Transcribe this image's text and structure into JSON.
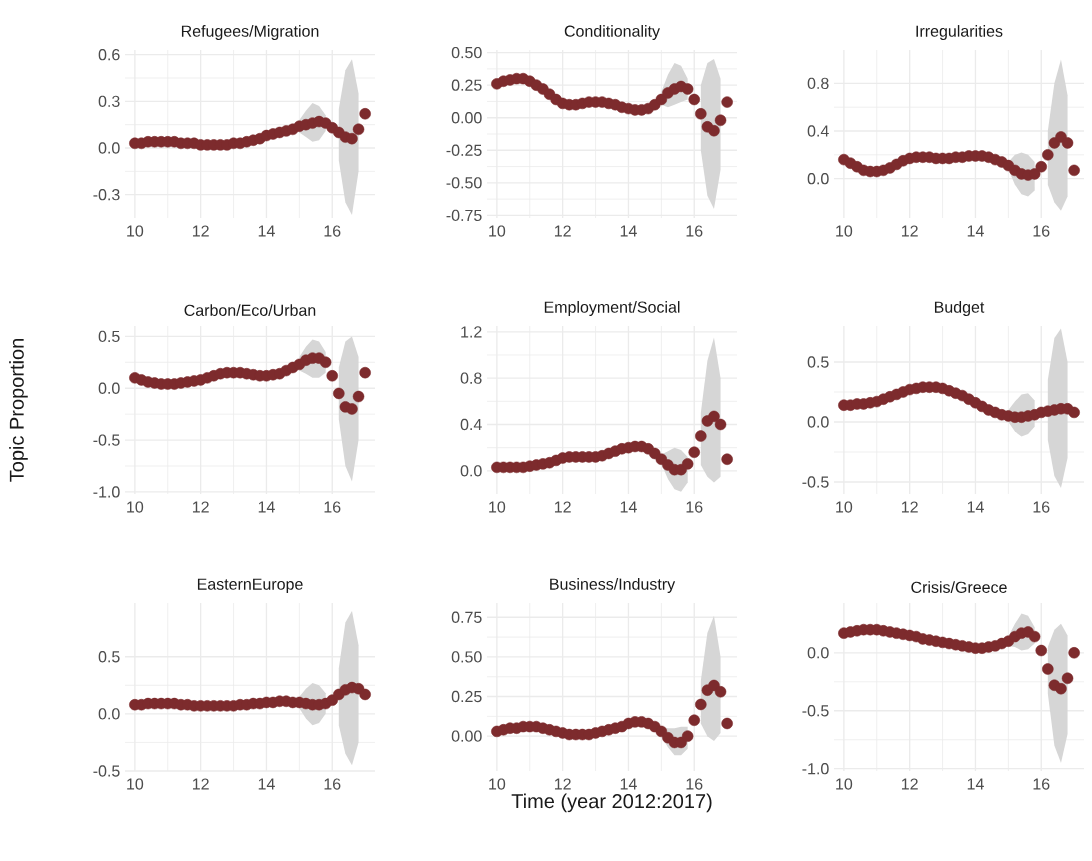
{
  "chart_data": [
    {
      "type": "scatter",
      "title": "Refugees/Migration",
      "grid": true,
      "marker": "circle",
      "xlim": [
        9.7,
        17.3
      ],
      "ylim": [
        -0.45,
        0.63
      ],
      "xticks": [
        10,
        12,
        14,
        16
      ],
      "yticks": [
        {
          "value": -0.3,
          "label": "-0.3"
        },
        {
          "value": 0,
          "label": "0.0"
        },
        {
          "value": 0.3,
          "label": "0.3"
        },
        {
          "value": 0.6,
          "label": "0.6"
        }
      ],
      "x": [
        10.0,
        10.2,
        10.4,
        10.6,
        10.8,
        11.0,
        11.2,
        11.4,
        11.6,
        11.8,
        12.0,
        12.2,
        12.4,
        12.6,
        12.8,
        13.0,
        13.2,
        13.4,
        13.6,
        13.8,
        14.0,
        14.2,
        14.4,
        14.6,
        14.8,
        15.0,
        15.2,
        15.4,
        15.6,
        15.8,
        16.0,
        16.2,
        16.4,
        16.6,
        16.8,
        17.0
      ],
      "series": [
        {
          "color": "#7d2b2d",
          "values": [
            0.03,
            0.03,
            0.04,
            0.04,
            0.04,
            0.04,
            0.04,
            0.03,
            0.03,
            0.03,
            0.02,
            0.02,
            0.02,
            0.02,
            0.02,
            0.03,
            0.03,
            0.04,
            0.05,
            0.06,
            0.08,
            0.09,
            0.1,
            0.11,
            0.12,
            0.14,
            0.15,
            0.16,
            0.17,
            0.16,
            0.13,
            0.1,
            0.07,
            0.06,
            0.12,
            0.22
          ],
          "upper": [
            null,
            null,
            null,
            null,
            null,
            null,
            null,
            null,
            null,
            null,
            null,
            null,
            null,
            null,
            null,
            null,
            null,
            null,
            null,
            null,
            null,
            null,
            null,
            null,
            null,
            0.18,
            0.24,
            0.29,
            0.27,
            0.21,
            null,
            0.25,
            0.5,
            0.57,
            0.35,
            null
          ],
          "lower": [
            null,
            null,
            null,
            null,
            null,
            null,
            null,
            null,
            null,
            null,
            null,
            null,
            null,
            null,
            null,
            null,
            null,
            null,
            null,
            null,
            null,
            null,
            null,
            null,
            null,
            0.1,
            0.07,
            0.04,
            0.05,
            0.11,
            null,
            -0.08,
            -0.35,
            -0.43,
            -0.15,
            null
          ]
        }
      ]
    },
    {
      "type": "scatter",
      "title": "Conditionality",
      "grid": true,
      "marker": "circle",
      "xlim": [
        9.7,
        17.3
      ],
      "ylim": [
        -0.77,
        0.52
      ],
      "xticks": [
        10,
        12,
        14,
        16
      ],
      "yticks": [
        {
          "value": -0.75,
          "label": "-0.75"
        },
        {
          "value": -0.5,
          "label": "-0.50"
        },
        {
          "value": -0.25,
          "label": "-0.25"
        },
        {
          "value": 0,
          "label": "0.00"
        },
        {
          "value": 0.25,
          "label": "0.25"
        },
        {
          "value": 0.5,
          "label": "0.50"
        }
      ],
      "x": [
        10.0,
        10.2,
        10.4,
        10.6,
        10.8,
        11.0,
        11.2,
        11.4,
        11.6,
        11.8,
        12.0,
        12.2,
        12.4,
        12.6,
        12.8,
        13.0,
        13.2,
        13.4,
        13.6,
        13.8,
        14.0,
        14.2,
        14.4,
        14.6,
        14.8,
        15.0,
        15.2,
        15.4,
        15.6,
        15.8,
        16.0,
        16.2,
        16.4,
        16.6,
        16.8,
        17.0
      ],
      "series": [
        {
          "color": "#7d2b2d",
          "values": [
            0.26,
            0.28,
            0.29,
            0.3,
            0.3,
            0.28,
            0.25,
            0.22,
            0.18,
            0.14,
            0.11,
            0.1,
            0.1,
            0.11,
            0.12,
            0.12,
            0.12,
            0.11,
            0.1,
            0.08,
            0.07,
            0.06,
            0.06,
            0.07,
            0.1,
            0.14,
            0.19,
            0.22,
            0.24,
            0.22,
            0.14,
            0.03,
            -0.07,
            -0.1,
            -0.02,
            0.12
          ],
          "upper": [
            null,
            null,
            null,
            null,
            null,
            null,
            null,
            null,
            null,
            null,
            null,
            null,
            null,
            null,
            null,
            null,
            null,
            null,
            null,
            null,
            null,
            null,
            null,
            null,
            null,
            0.2,
            0.33,
            0.42,
            0.4,
            0.3,
            null,
            0.25,
            0.42,
            0.45,
            0.3,
            null
          ],
          "lower": [
            null,
            null,
            null,
            null,
            null,
            null,
            null,
            null,
            null,
            null,
            null,
            null,
            null,
            null,
            null,
            null,
            null,
            null,
            null,
            null,
            null,
            null,
            null,
            null,
            null,
            0.1,
            0.08,
            0.1,
            0.12,
            0.14,
            null,
            -0.25,
            -0.6,
            -0.7,
            -0.4,
            null
          ]
        }
      ]
    },
    {
      "type": "scatter",
      "title": "Irregularities",
      "grid": true,
      "marker": "circle",
      "xlim": [
        9.7,
        17.3
      ],
      "ylim": [
        -0.33,
        1.08
      ],
      "xticks": [
        10,
        12,
        14,
        16
      ],
      "yticks": [
        {
          "value": 0,
          "label": "0.0"
        },
        {
          "value": 0.4,
          "label": "0.4"
        },
        {
          "value": 0.8,
          "label": "0.8"
        }
      ],
      "x": [
        10.0,
        10.2,
        10.4,
        10.6,
        10.8,
        11.0,
        11.2,
        11.4,
        11.6,
        11.8,
        12.0,
        12.2,
        12.4,
        12.6,
        12.8,
        13.0,
        13.2,
        13.4,
        13.6,
        13.8,
        14.0,
        14.2,
        14.4,
        14.6,
        14.8,
        15.0,
        15.2,
        15.4,
        15.6,
        15.8,
        16.0,
        16.2,
        16.4,
        16.6,
        16.8,
        17.0
      ],
      "series": [
        {
          "color": "#7d2b2d",
          "values": [
            0.16,
            0.13,
            0.1,
            0.07,
            0.06,
            0.06,
            0.07,
            0.09,
            0.12,
            0.15,
            0.17,
            0.18,
            0.18,
            0.18,
            0.17,
            0.17,
            0.17,
            0.18,
            0.18,
            0.19,
            0.19,
            0.19,
            0.18,
            0.16,
            0.14,
            0.11,
            0.07,
            0.04,
            0.03,
            0.04,
            0.1,
            0.2,
            0.3,
            0.35,
            0.3,
            0.07
          ],
          "upper": [
            null,
            null,
            null,
            null,
            null,
            null,
            null,
            null,
            null,
            null,
            null,
            null,
            null,
            null,
            null,
            null,
            null,
            null,
            null,
            null,
            null,
            null,
            null,
            null,
            null,
            0.14,
            0.2,
            0.22,
            0.2,
            0.14,
            null,
            0.4,
            0.8,
            1.0,
            0.7,
            null
          ],
          "lower": [
            null,
            null,
            null,
            null,
            null,
            null,
            null,
            null,
            null,
            null,
            null,
            null,
            null,
            null,
            null,
            null,
            null,
            null,
            null,
            null,
            null,
            null,
            null,
            null,
            null,
            0.08,
            -0.05,
            -0.13,
            -0.15,
            -0.1,
            null,
            -0.05,
            -0.2,
            -0.27,
            -0.15,
            null
          ]
        }
      ]
    },
    {
      "type": "scatter",
      "title": "Carbon/Eco/Urban",
      "ylabel": "Topic Proportion",
      "grid": true,
      "marker": "circle",
      "xlim": [
        9.7,
        17.3
      ],
      "ylim": [
        -1.02,
        0.6
      ],
      "xticks": [
        10,
        12,
        14,
        16
      ],
      "yticks": [
        {
          "value": -1,
          "label": "-1.0"
        },
        {
          "value": -0.5,
          "label": "-0.5"
        },
        {
          "value": 0,
          "label": "0.0"
        },
        {
          "value": 0.5,
          "label": "0.5"
        }
      ],
      "x": [
        10.0,
        10.2,
        10.4,
        10.6,
        10.8,
        11.0,
        11.2,
        11.4,
        11.6,
        11.8,
        12.0,
        12.2,
        12.4,
        12.6,
        12.8,
        13.0,
        13.2,
        13.4,
        13.6,
        13.8,
        14.0,
        14.2,
        14.4,
        14.6,
        14.8,
        15.0,
        15.2,
        15.4,
        15.6,
        15.8,
        16.0,
        16.2,
        16.4,
        16.6,
        16.8,
        17.0
      ],
      "series": [
        {
          "color": "#7d2b2d",
          "values": [
            0.1,
            0.08,
            0.06,
            0.05,
            0.04,
            0.04,
            0.04,
            0.05,
            0.06,
            0.07,
            0.08,
            0.1,
            0.12,
            0.14,
            0.15,
            0.15,
            0.15,
            0.14,
            0.13,
            0.12,
            0.12,
            0.13,
            0.14,
            0.17,
            0.2,
            0.23,
            0.27,
            0.29,
            0.29,
            0.25,
            0.12,
            -0.05,
            -0.18,
            -0.2,
            -0.08,
            0.15
          ],
          "upper": [
            null,
            null,
            null,
            null,
            null,
            null,
            null,
            null,
            null,
            null,
            null,
            null,
            null,
            null,
            null,
            null,
            null,
            null,
            null,
            null,
            null,
            null,
            null,
            null,
            null,
            0.3,
            0.4,
            0.47,
            0.45,
            0.35,
            null,
            0.2,
            0.45,
            0.5,
            0.3,
            null
          ],
          "lower": [
            null,
            null,
            null,
            null,
            null,
            null,
            null,
            null,
            null,
            null,
            null,
            null,
            null,
            null,
            null,
            null,
            null,
            null,
            null,
            null,
            null,
            null,
            null,
            null,
            null,
            0.17,
            0.14,
            0.1,
            0.1,
            0.15,
            null,
            -0.3,
            -0.75,
            -0.9,
            -0.5,
            null
          ]
        }
      ]
    },
    {
      "type": "scatter",
      "title": "Employment/Social",
      "grid": true,
      "marker": "circle",
      "xlim": [
        9.7,
        17.3
      ],
      "ylim": [
        -0.2,
        1.25
      ],
      "xticks": [
        10,
        12,
        14,
        16
      ],
      "yticks": [
        {
          "value": 0,
          "label": "0.0"
        },
        {
          "value": 0.4,
          "label": "0.4"
        },
        {
          "value": 0.8,
          "label": "0.8"
        },
        {
          "value": 1.2,
          "label": "1.2"
        }
      ],
      "x": [
        10.0,
        10.2,
        10.4,
        10.6,
        10.8,
        11.0,
        11.2,
        11.4,
        11.6,
        11.8,
        12.0,
        12.2,
        12.4,
        12.6,
        12.8,
        13.0,
        13.2,
        13.4,
        13.6,
        13.8,
        14.0,
        14.2,
        14.4,
        14.6,
        14.8,
        15.0,
        15.2,
        15.4,
        15.6,
        15.8,
        16.0,
        16.2,
        16.4,
        16.6,
        16.8,
        17.0
      ],
      "series": [
        {
          "color": "#7d2b2d",
          "values": [
            0.03,
            0.03,
            0.03,
            0.03,
            0.03,
            0.04,
            0.05,
            0.06,
            0.07,
            0.09,
            0.11,
            0.12,
            0.12,
            0.12,
            0.12,
            0.12,
            0.13,
            0.15,
            0.17,
            0.19,
            0.2,
            0.21,
            0.21,
            0.19,
            0.15,
            0.1,
            0.05,
            0.01,
            0.01,
            0.06,
            0.16,
            0.3,
            0.43,
            0.47,
            0.4,
            0.1
          ],
          "upper": [
            null,
            null,
            null,
            null,
            null,
            null,
            null,
            null,
            null,
            null,
            null,
            null,
            null,
            null,
            null,
            null,
            null,
            null,
            null,
            null,
            null,
            null,
            null,
            null,
            null,
            0.14,
            0.17,
            0.2,
            0.18,
            0.12,
            null,
            0.5,
            0.95,
            1.15,
            0.8,
            null
          ],
          "lower": [
            null,
            null,
            null,
            null,
            null,
            null,
            null,
            null,
            null,
            null,
            null,
            null,
            null,
            null,
            null,
            null,
            null,
            null,
            null,
            null,
            null,
            null,
            null,
            null,
            null,
            0.06,
            -0.07,
            -0.16,
            -0.18,
            -0.1,
            null,
            0.05,
            -0.05,
            -0.1,
            -0.05,
            null
          ]
        }
      ]
    },
    {
      "type": "scatter",
      "title": "Budget",
      "grid": true,
      "marker": "circle",
      "xlim": [
        9.7,
        17.3
      ],
      "ylim": [
        -0.6,
        0.8
      ],
      "xticks": [
        10,
        12,
        14,
        16
      ],
      "yticks": [
        {
          "value": -0.5,
          "label": "-0.5"
        },
        {
          "value": 0,
          "label": "0.0"
        },
        {
          "value": 0.5,
          "label": "0.5"
        }
      ],
      "x": [
        10.0,
        10.2,
        10.4,
        10.6,
        10.8,
        11.0,
        11.2,
        11.4,
        11.6,
        11.8,
        12.0,
        12.2,
        12.4,
        12.6,
        12.8,
        13.0,
        13.2,
        13.4,
        13.6,
        13.8,
        14.0,
        14.2,
        14.4,
        14.6,
        14.8,
        15.0,
        15.2,
        15.4,
        15.6,
        15.8,
        16.0,
        16.2,
        16.4,
        16.6,
        16.8,
        17.0
      ],
      "series": [
        {
          "color": "#7d2b2d",
          "values": [
            0.14,
            0.14,
            0.15,
            0.15,
            0.16,
            0.17,
            0.19,
            0.21,
            0.23,
            0.25,
            0.27,
            0.28,
            0.29,
            0.29,
            0.29,
            0.28,
            0.26,
            0.24,
            0.22,
            0.19,
            0.16,
            0.13,
            0.1,
            0.08,
            0.06,
            0.05,
            0.04,
            0.04,
            0.05,
            0.06,
            0.08,
            0.09,
            0.1,
            0.11,
            0.11,
            0.08
          ],
          "upper": [
            null,
            null,
            null,
            null,
            null,
            null,
            null,
            null,
            null,
            null,
            null,
            null,
            null,
            null,
            null,
            null,
            null,
            null,
            null,
            null,
            null,
            null,
            null,
            null,
            null,
            0.1,
            0.17,
            0.23,
            0.24,
            0.18,
            null,
            0.35,
            0.7,
            0.78,
            0.5,
            null
          ],
          "lower": [
            null,
            null,
            null,
            null,
            null,
            null,
            null,
            null,
            null,
            null,
            null,
            null,
            null,
            null,
            null,
            null,
            null,
            null,
            null,
            null,
            null,
            null,
            null,
            null,
            null,
            0.0,
            -0.08,
            -0.12,
            -0.1,
            -0.04,
            null,
            -0.15,
            -0.45,
            -0.55,
            -0.3,
            null
          ]
        }
      ]
    },
    {
      "type": "scatter",
      "title": "EasternEurope",
      "grid": true,
      "marker": "circle",
      "xlim": [
        9.7,
        17.3
      ],
      "ylim": [
        -0.5,
        0.97
      ],
      "xticks": [
        10,
        12,
        14,
        16
      ],
      "yticks": [
        {
          "value": -0.5,
          "label": "-0.5"
        },
        {
          "value": 0,
          "label": "0.0"
        },
        {
          "value": 0.5,
          "label": "0.5"
        }
      ],
      "x": [
        10.0,
        10.2,
        10.4,
        10.6,
        10.8,
        11.0,
        11.2,
        11.4,
        11.6,
        11.8,
        12.0,
        12.2,
        12.4,
        12.6,
        12.8,
        13.0,
        13.2,
        13.4,
        13.6,
        13.8,
        14.0,
        14.2,
        14.4,
        14.6,
        14.8,
        15.0,
        15.2,
        15.4,
        15.6,
        15.8,
        16.0,
        16.2,
        16.4,
        16.6,
        16.8,
        17.0
      ],
      "series": [
        {
          "color": "#7d2b2d",
          "values": [
            0.08,
            0.08,
            0.09,
            0.09,
            0.09,
            0.09,
            0.09,
            0.08,
            0.08,
            0.07,
            0.07,
            0.07,
            0.07,
            0.07,
            0.07,
            0.07,
            0.08,
            0.08,
            0.09,
            0.09,
            0.1,
            0.1,
            0.11,
            0.11,
            0.1,
            0.1,
            0.09,
            0.08,
            0.08,
            0.09,
            0.12,
            0.17,
            0.21,
            0.23,
            0.22,
            0.17
          ],
          "upper": [
            null,
            null,
            null,
            null,
            null,
            null,
            null,
            null,
            null,
            null,
            null,
            null,
            null,
            null,
            null,
            null,
            null,
            null,
            null,
            null,
            null,
            null,
            null,
            null,
            null,
            0.15,
            0.22,
            0.27,
            0.25,
            0.18,
            null,
            0.4,
            0.8,
            0.9,
            0.6,
            null
          ],
          "lower": [
            null,
            null,
            null,
            null,
            null,
            null,
            null,
            null,
            null,
            null,
            null,
            null,
            null,
            null,
            null,
            null,
            null,
            null,
            null,
            null,
            null,
            null,
            null,
            null,
            null,
            0.05,
            -0.04,
            -0.1,
            -0.08,
            0.0,
            null,
            -0.1,
            -0.35,
            -0.45,
            -0.25,
            null
          ]
        }
      ]
    },
    {
      "type": "scatter",
      "title": "Business/Industry",
      "xlabel": "Time (year 2012:2017)",
      "grid": true,
      "marker": "circle",
      "xlim": [
        9.7,
        17.3
      ],
      "ylim": [
        -0.22,
        0.84
      ],
      "xticks": [
        10,
        12,
        14,
        16
      ],
      "yticks": [
        {
          "value": 0,
          "label": "0.00"
        },
        {
          "value": 0.25,
          "label": "0.25"
        },
        {
          "value": 0.5,
          "label": "0.50"
        },
        {
          "value": 0.75,
          "label": "0.75"
        }
      ],
      "x": [
        10.0,
        10.2,
        10.4,
        10.6,
        10.8,
        11.0,
        11.2,
        11.4,
        11.6,
        11.8,
        12.0,
        12.2,
        12.4,
        12.6,
        12.8,
        13.0,
        13.2,
        13.4,
        13.6,
        13.8,
        14.0,
        14.2,
        14.4,
        14.6,
        14.8,
        15.0,
        15.2,
        15.4,
        15.6,
        15.8,
        16.0,
        16.2,
        16.4,
        16.6,
        16.8,
        17.0
      ],
      "series": [
        {
          "color": "#7d2b2d",
          "values": [
            0.03,
            0.04,
            0.05,
            0.05,
            0.06,
            0.06,
            0.06,
            0.05,
            0.04,
            0.03,
            0.02,
            0.01,
            0.01,
            0.01,
            0.01,
            0.02,
            0.03,
            0.04,
            0.05,
            0.06,
            0.08,
            0.09,
            0.09,
            0.08,
            0.06,
            0.03,
            -0.01,
            -0.04,
            -0.04,
            0.0,
            0.1,
            0.2,
            0.29,
            0.32,
            0.28,
            0.08
          ],
          "upper": [
            null,
            null,
            null,
            null,
            null,
            null,
            null,
            null,
            null,
            null,
            null,
            null,
            null,
            null,
            null,
            null,
            null,
            null,
            null,
            null,
            null,
            null,
            null,
            null,
            null,
            0.06,
            0.05,
            0.05,
            0.06,
            0.06,
            null,
            0.35,
            0.65,
            0.76,
            0.5,
            null
          ],
          "lower": [
            null,
            null,
            null,
            null,
            null,
            null,
            null,
            null,
            null,
            null,
            null,
            null,
            null,
            null,
            null,
            null,
            null,
            null,
            null,
            null,
            null,
            null,
            null,
            null,
            null,
            0.0,
            -0.07,
            -0.12,
            -0.12,
            -0.08,
            null,
            0.08,
            0.0,
            -0.03,
            0.02,
            null
          ]
        }
      ]
    },
    {
      "type": "scatter",
      "title": "Crisis/Greece",
      "grid": true,
      "marker": "circle",
      "xlim": [
        9.7,
        17.3
      ],
      "ylim": [
        -1.02,
        0.43
      ],
      "xticks": [
        10,
        12,
        14,
        16
      ],
      "yticks": [
        {
          "value": -1,
          "label": "-1.0"
        },
        {
          "value": -0.5,
          "label": "-0.5"
        },
        {
          "value": 0,
          "label": "0.0"
        }
      ],
      "x": [
        10.0,
        10.2,
        10.4,
        10.6,
        10.8,
        11.0,
        11.2,
        11.4,
        11.6,
        11.8,
        12.0,
        12.2,
        12.4,
        12.6,
        12.8,
        13.0,
        13.2,
        13.4,
        13.6,
        13.8,
        14.0,
        14.2,
        14.4,
        14.6,
        14.8,
        15.0,
        15.2,
        15.4,
        15.6,
        15.8,
        16.0,
        16.2,
        16.4,
        16.6,
        16.8,
        17.0
      ],
      "series": [
        {
          "color": "#7d2b2d",
          "values": [
            0.17,
            0.18,
            0.19,
            0.2,
            0.2,
            0.2,
            0.19,
            0.18,
            0.17,
            0.16,
            0.15,
            0.14,
            0.12,
            0.11,
            0.1,
            0.09,
            0.08,
            0.07,
            0.06,
            0.05,
            0.04,
            0.04,
            0.05,
            0.06,
            0.08,
            0.1,
            0.14,
            0.17,
            0.18,
            0.14,
            0.02,
            -0.14,
            -0.28,
            -0.31,
            -0.22,
            0.0
          ],
          "upper": [
            null,
            null,
            null,
            null,
            null,
            null,
            null,
            null,
            null,
            null,
            null,
            null,
            null,
            null,
            null,
            null,
            null,
            null,
            null,
            null,
            null,
            null,
            null,
            null,
            null,
            0.14,
            0.25,
            0.34,
            0.32,
            0.22,
            null,
            0.05,
            0.2,
            0.25,
            0.15,
            null
          ],
          "lower": [
            null,
            null,
            null,
            null,
            null,
            null,
            null,
            null,
            null,
            null,
            null,
            null,
            null,
            null,
            null,
            null,
            null,
            null,
            null,
            null,
            null,
            null,
            null,
            null,
            null,
            0.06,
            0.05,
            0.02,
            0.03,
            0.08,
            null,
            -0.35,
            -0.8,
            -0.95,
            -0.7,
            null
          ]
        }
      ]
    }
  ]
}
